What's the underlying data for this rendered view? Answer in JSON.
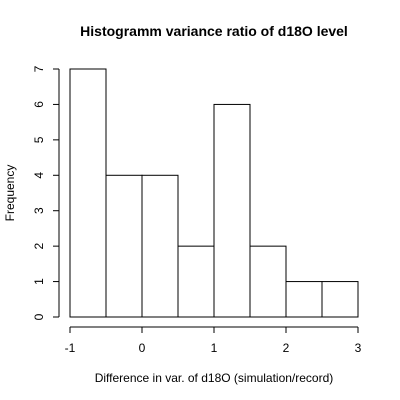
{
  "chart_data": {
    "type": "bar",
    "title": "Histogramm variance ratio of d18O level",
    "xlabel": "Difference in var. of d18O (simulation/record)",
    "ylabel": "Frequency",
    "bins": [
      {
        "from": -1.0,
        "to": -0.5,
        "count": 7
      },
      {
        "from": -0.5,
        "to": 0.0,
        "count": 4
      },
      {
        "from": 0.0,
        "to": 0.5,
        "count": 4
      },
      {
        "from": 0.5,
        "to": 1.0,
        "count": 2
      },
      {
        "from": 1.0,
        "to": 1.5,
        "count": 6
      },
      {
        "from": 1.5,
        "to": 2.0,
        "count": 2
      },
      {
        "from": 2.0,
        "to": 2.5,
        "count": 1
      },
      {
        "from": 2.5,
        "to": 3.0,
        "count": 1
      }
    ],
    "xlim": [
      -1,
      3
    ],
    "ylim": [
      0,
      7
    ],
    "xticks": [
      -1,
      0,
      1,
      2,
      3
    ],
    "yticks": [
      0,
      1,
      2,
      3,
      4,
      5,
      6,
      7
    ],
    "grid": false,
    "legend": "none"
  }
}
